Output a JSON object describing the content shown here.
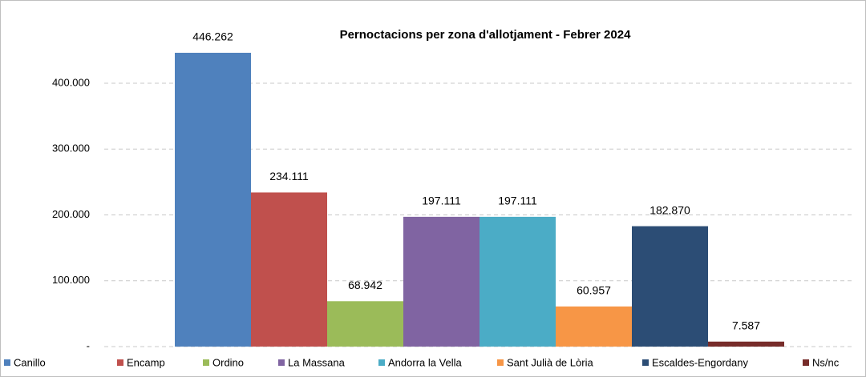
{
  "chart_data": {
    "type": "bar",
    "title": "Pernoctacions per zona d'allotjament - Febrer 2024",
    "categories": [
      null
    ],
    "series": [
      {
        "name": "Canillo",
        "color": "#4f81bd",
        "values": [
          446262
        ],
        "value_labels": [
          "446.262"
        ]
      },
      {
        "name": "Encamp",
        "color": "#c0504d",
        "values": [
          234111
        ],
        "value_labels": [
          "234.111"
        ]
      },
      {
        "name": "Ordino",
        "color": "#9bbb59",
        "values": [
          68942
        ],
        "value_labels": [
          "68.942"
        ]
      },
      {
        "name": "La Massana",
        "color": "#8064a2",
        "values": [
          197111
        ],
        "value_labels": [
          "197.111"
        ]
      },
      {
        "name": "Andorra la Vella",
        "color": "#4bacc6",
        "values": [
          197111
        ],
        "value_labels": [
          "197.111"
        ]
      },
      {
        "name": "Sant Julià de Lòria",
        "color": "#f79646",
        "values": [
          60957
        ],
        "value_labels": [
          "60.957"
        ]
      },
      {
        "name": "Escaldes-Engordany",
        "color": "#2c4d75",
        "values": [
          182870
        ],
        "value_labels": [
          "182.870"
        ]
      },
      {
        "name": "Ns/nc",
        "color": "#772c2a",
        "values": [
          7587
        ],
        "value_labels": [
          "7.587"
        ]
      }
    ],
    "ylim": [
      0,
      500000
    ],
    "yticks": [
      {
        "value": 0,
        "label": "-"
      },
      {
        "value": 100000,
        "label": "100.000"
      },
      {
        "value": 200000,
        "label": "200.000"
      },
      {
        "value": 300000,
        "label": "300.000"
      },
      {
        "value": 400000,
        "label": "400.000"
      }
    ],
    "grid": true,
    "legend": "bottom"
  }
}
